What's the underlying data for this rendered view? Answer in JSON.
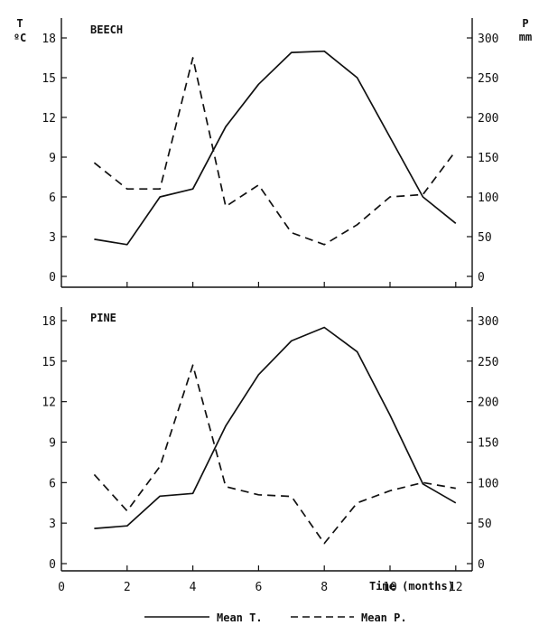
{
  "chart_data": [
    {
      "type": "line",
      "title": "BEECH",
      "x": [
        1,
        2,
        3,
        4,
        5,
        6,
        7,
        8,
        9,
        10,
        11,
        12
      ],
      "series": [
        {
          "name": "Mean T.",
          "axis": "left",
          "style": "solid",
          "values": [
            2.8,
            2.4,
            6.0,
            6.6,
            11.3,
            14.5,
            16.9,
            17.0,
            15.0,
            10.5,
            6.0,
            4.0
          ]
        },
        {
          "name": "Mean P.",
          "axis": "right",
          "style": "dashed",
          "values": [
            143,
            110,
            110,
            275,
            88,
            115,
            55,
            40,
            65,
            100,
            103,
            158
          ]
        }
      ],
      "left_axis": {
        "label": "T",
        "unit": "ºC",
        "ylim": [
          0,
          18
        ],
        "ticks": [
          "0",
          "3",
          "6",
          "9",
          "12",
          "15",
          "18"
        ]
      },
      "right_axis": {
        "label": "P",
        "unit": "mm",
        "ylim": [
          0,
          300
        ],
        "ticks": [
          "0",
          "50",
          "100",
          "150",
          "200",
          "250",
          "300"
        ]
      },
      "xlim": [
        0,
        12.5
      ]
    },
    {
      "type": "line",
      "title": "PINE",
      "x": [
        1,
        2,
        3,
        4,
        5,
        6,
        7,
        8,
        9,
        10,
        11,
        12
      ],
      "series": [
        {
          "name": "Mean T.",
          "axis": "left",
          "style": "solid",
          "values": [
            2.6,
            2.8,
            5.0,
            5.2,
            10.2,
            14.0,
            16.5,
            17.5,
            15.7,
            11.0,
            5.9,
            4.5
          ]
        },
        {
          "name": "Mean P.",
          "axis": "right",
          "style": "dashed",
          "values": [
            110,
            65,
            120,
            245,
            95,
            85,
            83,
            25,
            75,
            90,
            100,
            93
          ]
        }
      ],
      "left_axis": {
        "ylim": [
          0,
          18
        ],
        "ticks": [
          "0",
          "3",
          "6",
          "9",
          "12",
          "15",
          "18"
        ]
      },
      "right_axis": {
        "ylim": [
          0,
          300
        ],
        "ticks": [
          "0",
          "50",
          "100",
          "150",
          "200",
          "250",
          "300"
        ]
      },
      "xlim": [
        0,
        12.5
      ],
      "x_ticks": [
        "0",
        "2",
        "4",
        "6",
        "8",
        "10",
        "12"
      ],
      "xlabel": "Time (months)"
    }
  ],
  "legend": {
    "items": [
      {
        "label": "Mean T.",
        "style": "solid"
      },
      {
        "label": "Mean P.",
        "style": "dashed"
      }
    ],
    "placement": "bottom-center"
  },
  "colors": {
    "ink": "#111111",
    "background": "#ffffff"
  }
}
